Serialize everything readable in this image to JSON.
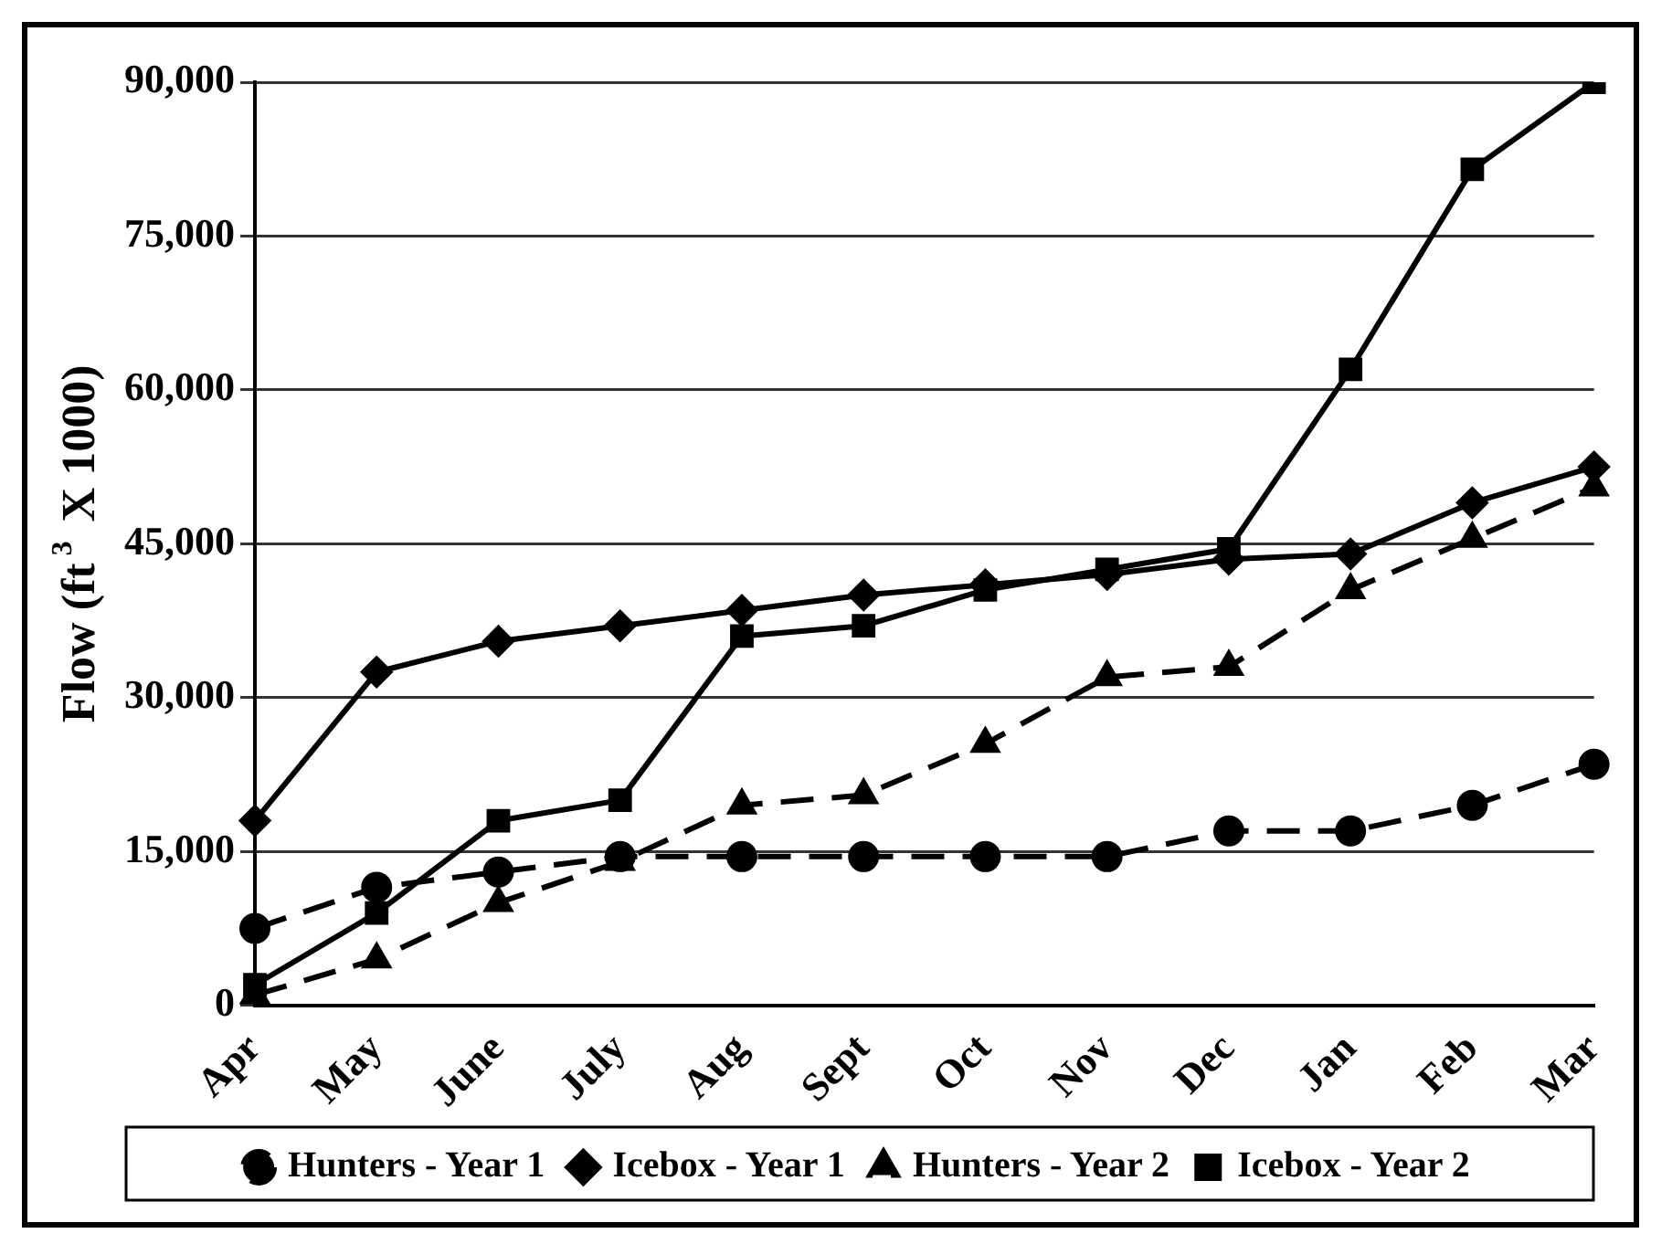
{
  "chart_data": {
    "type": "line",
    "ylabel": "Flow (ft$^{3}$ X 1000)",
    "categories": [
      "Apr",
      "May",
      "June",
      "July",
      "Aug",
      "Sept",
      "Oct",
      "Nov",
      "Dec",
      "Jan",
      "Feb",
      "Mar"
    ],
    "series": [
      {
        "name": "Hunters - Year 1",
        "color": "#000000",
        "marker": "circle",
        "line_style": "dashed",
        "values": [
          7500,
          11500,
          13000,
          14500,
          14500,
          14500,
          14500,
          14500,
          17000,
          17000,
          19500,
          23500
        ]
      },
      {
        "name": "Icebox - Year 1",
        "color": "#000000",
        "marker": "diamond",
        "line_style": "solid",
        "values": [
          18000,
          32500,
          35500,
          37000,
          38500,
          40000,
          41000,
          42000,
          43500,
          44000,
          49000,
          52500
        ]
      },
      {
        "name": "Hunters - Year 2",
        "color": "#000000",
        "marker": "triangle",
        "line_style": "dashed",
        "values": [
          1000,
          4500,
          10000,
          14000,
          19500,
          20500,
          25500,
          32000,
          33000,
          40500,
          45500,
          50500
        ]
      },
      {
        "name": "Icebox - Year 2",
        "color": "#000000",
        "marker": "square",
        "line_style": "solid",
        "values": [
          2000,
          9000,
          18000,
          20000,
          36000,
          37000,
          40500,
          42500,
          44500,
          62000,
          81500,
          90000
        ]
      }
    ],
    "ylim": [
      0,
      90000
    ],
    "yticks": [
      0,
      {
        "value": 15000,
        "label": "15,000"
      },
      {
        "value": 30000,
        "label": "30,000"
      },
      {
        "value": 45000,
        "label": "45,000"
      },
      {
        "value": 60000,
        "label": "60,000"
      },
      {
        "value": 75000,
        "label": "75,000"
      },
      {
        "value": 90000,
        "label": "90,000"
      }
    ],
    "grid": "y",
    "legend": "bottom"
  }
}
